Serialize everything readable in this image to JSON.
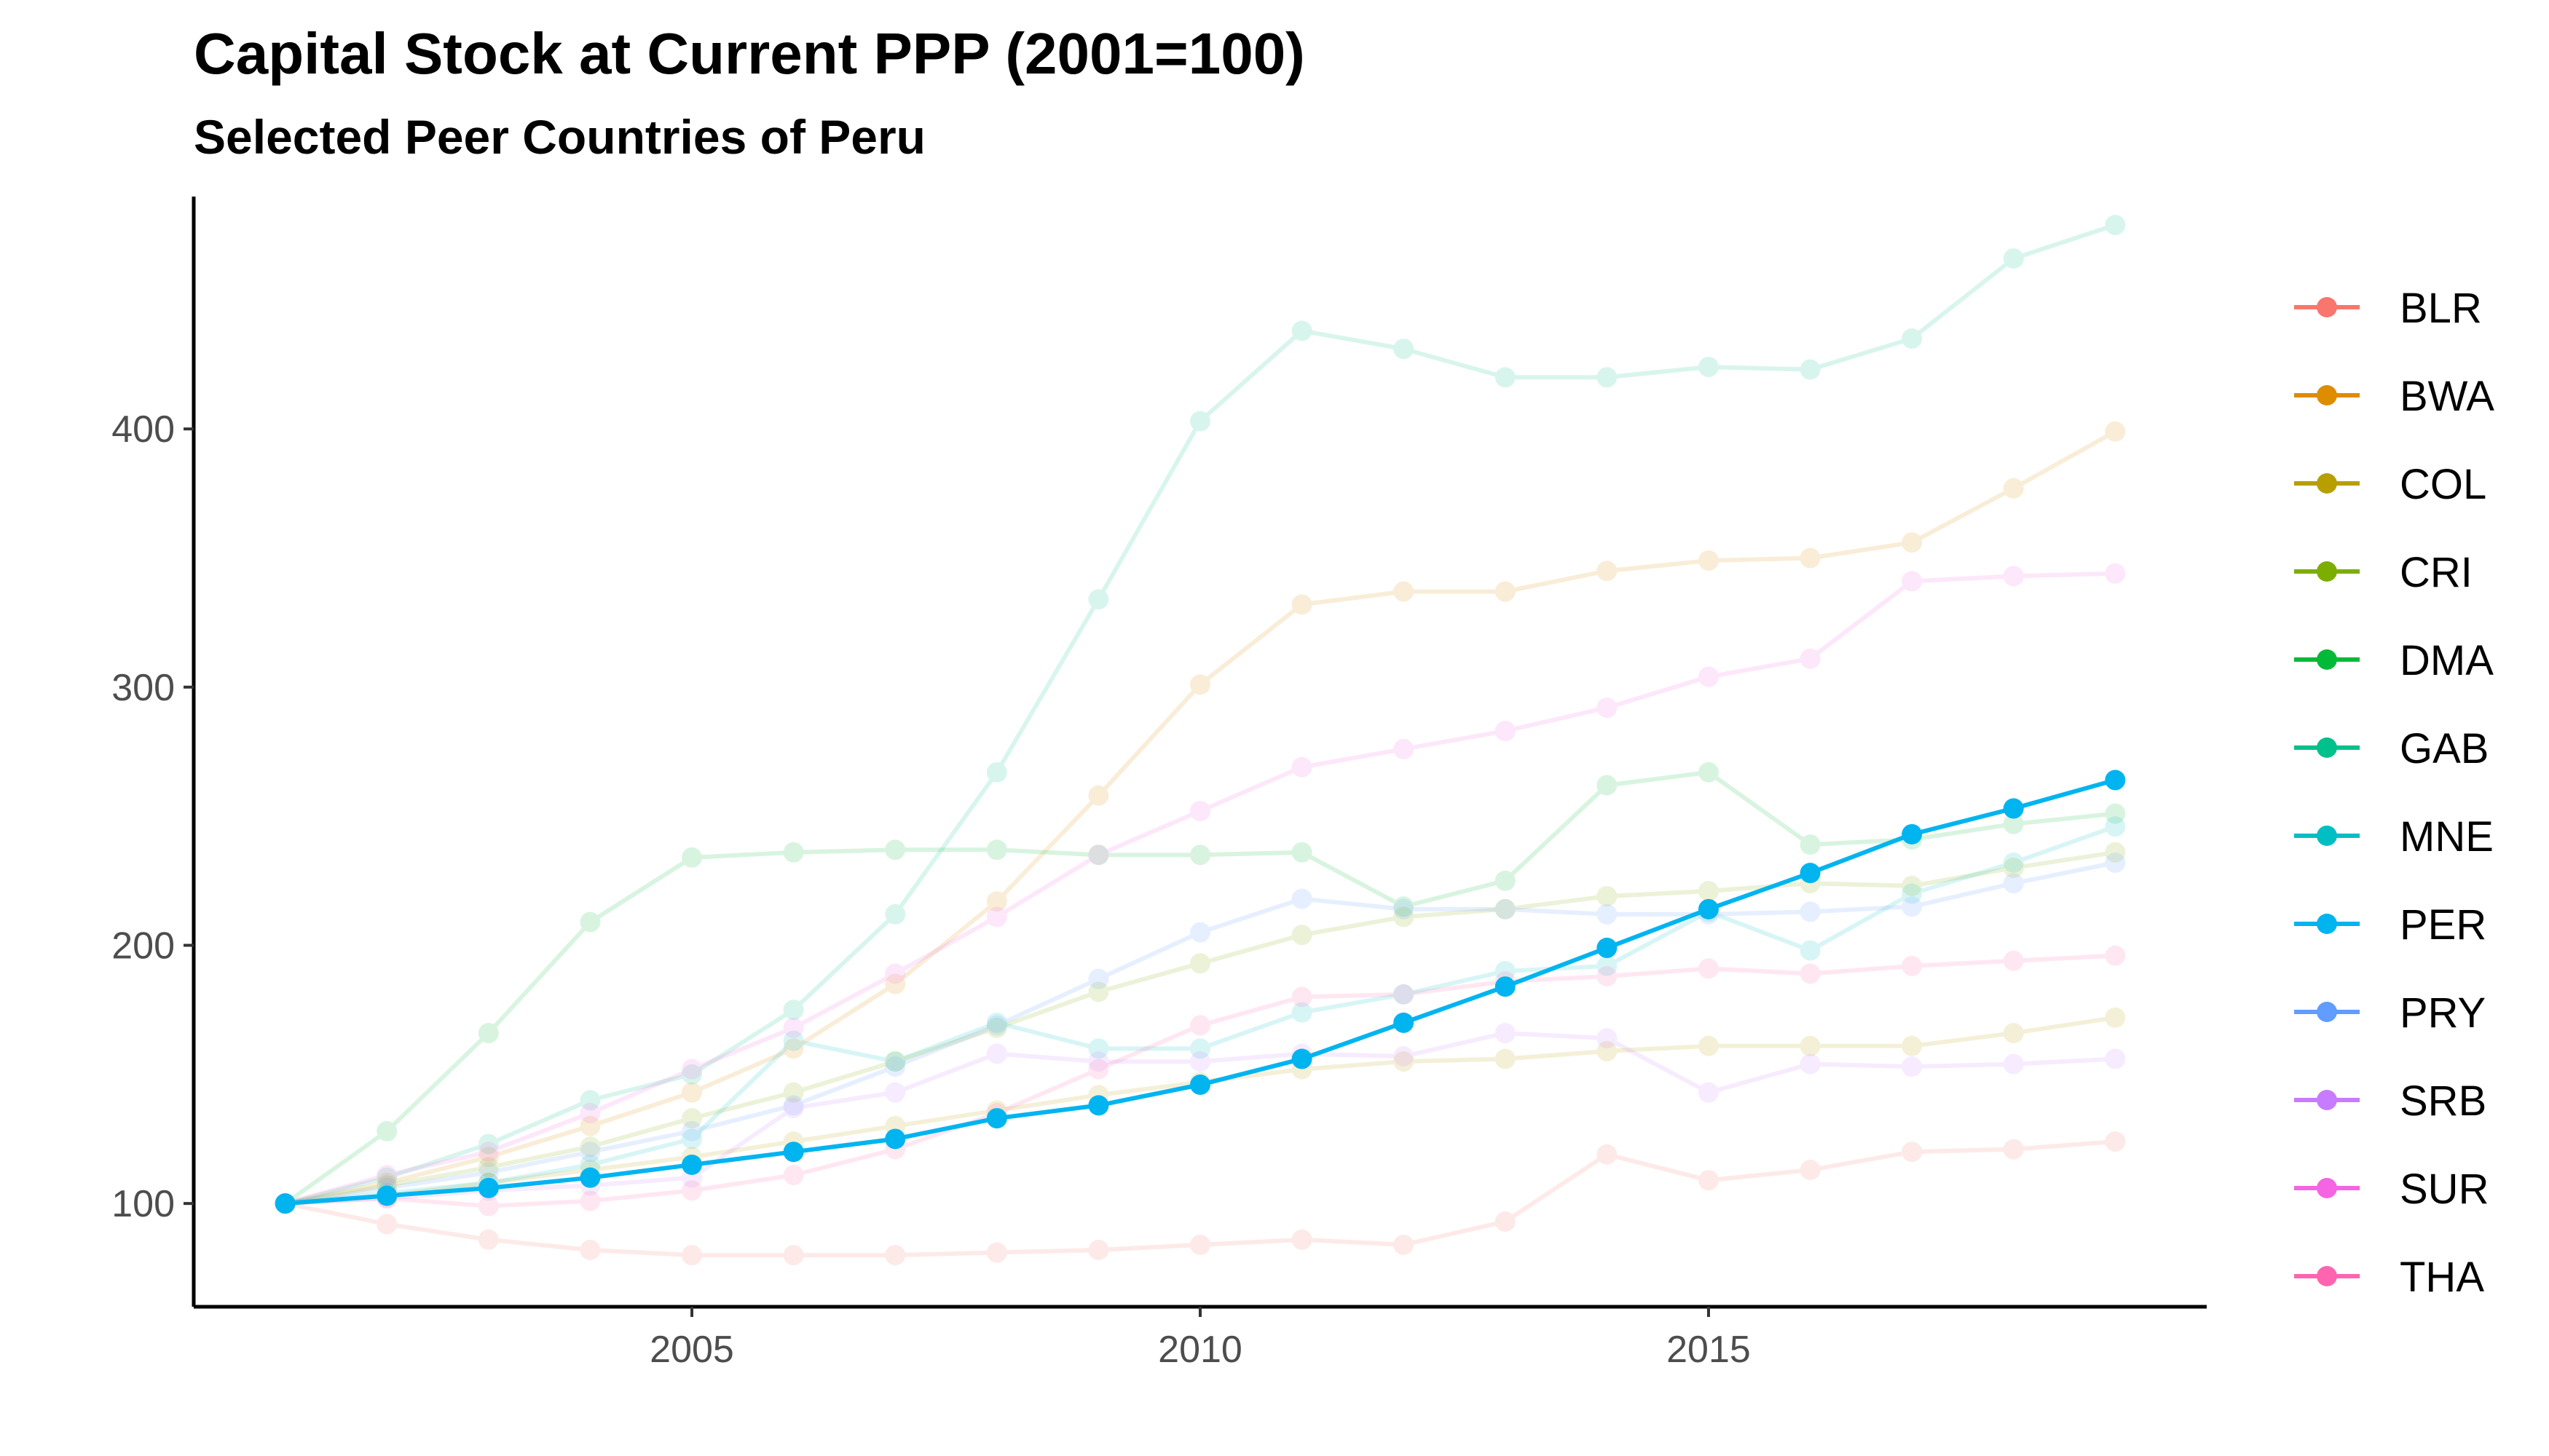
{
  "chart_data": {
    "type": "line",
    "title": "Capital Stock at Current PPP (2001=100)",
    "subtitle": "Selected Peer Countries of Peru",
    "xlabel": "",
    "ylabel": "",
    "xlim": [
      2001,
      2019
    ],
    "ylim": [
      60,
      490
    ],
    "x_ticks": [
      2005,
      2010,
      2015
    ],
    "y_ticks": [
      100,
      200,
      300,
      400
    ],
    "grid": false,
    "legend_position": "right",
    "highlight_series": "PER",
    "x": [
      2001,
      2002,
      2003,
      2004,
      2005,
      2006,
      2007,
      2008,
      2009,
      2010,
      2011,
      2012,
      2013,
      2014,
      2015,
      2016,
      2017,
      2018,
      2019
    ],
    "series": [
      {
        "name": "BLR",
        "color": "#F8766D",
        "values": [
          100,
          92,
          86,
          82,
          80,
          80,
          80,
          81,
          82,
          84,
          86,
          84,
          93,
          119,
          109,
          113,
          120,
          121,
          124
        ]
      },
      {
        "name": "BWA",
        "color": "#DE8C00",
        "values": [
          100,
          108,
          118,
          130,
          143,
          160,
          185,
          217,
          258,
          301,
          332,
          337,
          337,
          345,
          349,
          350,
          356,
          377,
          399
        ]
      },
      {
        "name": "COL",
        "color": "#B79F00",
        "values": [
          100,
          103,
          108,
          113,
          118,
          124,
          130,
          136,
          142,
          147,
          152,
          155,
          156,
          159,
          161,
          161,
          161,
          166,
          172
        ]
      },
      {
        "name": "CRI",
        "color": "#7CAE00",
        "values": [
          100,
          107,
          114,
          122,
          133,
          143,
          155,
          168,
          182,
          193,
          204,
          211,
          214,
          219,
          221,
          224,
          223,
          230,
          236
        ]
      },
      {
        "name": "DMA",
        "color": "#00BA38",
        "values": [
          100,
          128,
          166,
          209,
          234,
          236,
          237,
          237,
          235,
          235,
          236,
          215,
          225,
          262,
          267,
          239,
          241,
          247,
          251
        ]
      },
      {
        "name": "GAB",
        "color": "#00C08B",
        "values": [
          100,
          110,
          123,
          140,
          150,
          175,
          212,
          267,
          334,
          403,
          438,
          431,
          420,
          420,
          424,
          423,
          435,
          466,
          479
        ]
      },
      {
        "name": "MNE",
        "color": "#00BFC4",
        "values": [
          100,
          104,
          108,
          115,
          125,
          163,
          155,
          170,
          160,
          160,
          174,
          181,
          190,
          192,
          213,
          198,
          220,
          232,
          246
        ]
      },
      {
        "name": "PER",
        "color": "#00B4F0",
        "values": [
          100,
          103,
          106,
          110,
          115,
          120,
          125,
          133,
          138,
          146,
          156,
          170,
          184,
          199,
          214,
          228,
          243,
          253,
          264
        ]
      },
      {
        "name": "PRY",
        "color": "#619CFF",
        "values": [
          100,
          106,
          112,
          120,
          128,
          138,
          153,
          169,
          187,
          205,
          218,
          214,
          214,
          212,
          212,
          213,
          215,
          224,
          232
        ]
      },
      {
        "name": "SRB",
        "color": "#C77CFF",
        "values": [
          100,
          102,
          105,
          107,
          110,
          137,
          143,
          158,
          155,
          155,
          158,
          157,
          166,
          164,
          143,
          154,
          153,
          154,
          156
        ]
      },
      {
        "name": "SUR",
        "color": "#F564E3",
        "values": [
          100,
          111,
          120,
          135,
          152,
          168,
          189,
          211,
          235,
          252,
          269,
          276,
          283,
          292,
          304,
          311,
          341,
          343,
          344
        ]
      },
      {
        "name": "THA",
        "color": "#FF64B0",
        "values": [
          100,
          102,
          99,
          101,
          105,
          111,
          121,
          135,
          152,
          169,
          180,
          181,
          186,
          188,
          191,
          189,
          192,
          194,
          196
        ]
      }
    ]
  }
}
